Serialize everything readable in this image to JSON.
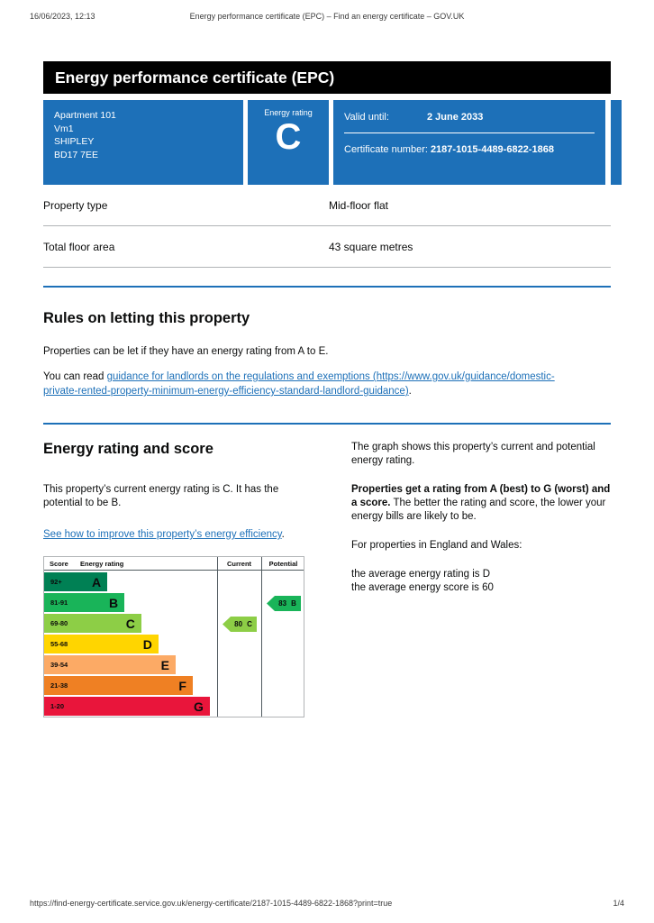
{
  "print_header": {
    "datetime": "16/06/2023, 12:13",
    "title": "Energy performance certificate (EPC) – Find an energy certificate – GOV.UK"
  },
  "banner": {
    "title": "Energy performance certificate (EPC)"
  },
  "summary": {
    "box_color": "#1d70b8",
    "address_lines": [
      "Apartment 101",
      "Vm1",
      "SHIPLEY",
      "BD17 7EE"
    ],
    "rating_label": "Energy rating",
    "rating_value": "C",
    "valid_until_label": "Valid until:",
    "valid_until_value": "2 June 2033",
    "certificate_number_label": "Certificate number:",
    "certificate_number_value": "2187-1015-4489-6822-1868"
  },
  "facts": [
    {
      "label": "Property type",
      "value": "Mid-floor flat"
    },
    {
      "label": "Total floor area",
      "value": "43 square metres"
    }
  ],
  "letting": {
    "heading": "Rules on letting this property",
    "p1": "Properties can be let if they have an energy rating from A to E.",
    "p2_prefix": "You can read ",
    "p2_link": "guidance for landlords on the regulations and exemptions (https://www.gov.uk/guidance/domestic-private-rented-property-minimum-energy-efficiency-standard-landlord-guidance)",
    "p2_suffix": "."
  },
  "rating_section": {
    "heading": "Energy rating and score",
    "p1": "This property’s current energy rating is C. It has the potential to be B.",
    "link": "See how to improve this property’s energy efficiency",
    "link_suffix": ".",
    "right_p1": "The graph shows this property’s current and potential energy rating.",
    "right_p2_bold": "Properties get a rating from A (best) to G (worst) and a score.",
    "right_p2_rest": "The better the rating and score, the lower your energy bills are likely to be.",
    "right_p3": "For properties in England and Wales:",
    "right_p4_line1": "the average energy rating is D",
    "right_p4_line2": "the average energy score is 60"
  },
  "chart_data": {
    "type": "bar",
    "orientation": "horizontal",
    "title": "Energy rating and score",
    "score_range": [
      1,
      100
    ],
    "headers": {
      "score": "Score",
      "rating": "Energy rating",
      "current": "Current",
      "potential": "Potential"
    },
    "bands": [
      {
        "score": "92+",
        "letter": "A",
        "color": "#008054",
        "width_pct": 36.5
      },
      {
        "score": "81-91",
        "letter": "B",
        "color": "#19b459",
        "width_pct": 46.4
      },
      {
        "score": "69-80",
        "letter": "C",
        "color": "#8dce46",
        "width_pct": 56.2
      },
      {
        "score": "55-68",
        "letter": "D",
        "color": "#ffd500",
        "width_pct": 66.1
      },
      {
        "score": "39-54",
        "letter": "E",
        "color": "#fcaa65",
        "width_pct": 76.0
      },
      {
        "score": "21-38",
        "letter": "F",
        "color": "#ef8023",
        "width_pct": 85.9
      },
      {
        "score": "1-20",
        "letter": "G",
        "color": "#e9153b",
        "width_pct": 95.8
      }
    ],
    "current": {
      "score": 80,
      "letter": "C",
      "band_index": 2,
      "color": "#8dce46"
    },
    "potential": {
      "score": 83,
      "letter": "B",
      "band_index": 1,
      "color": "#19b459"
    }
  },
  "page_footer": {
    "url": "https://find-energy-certificate.service.gov.uk/energy-certificate/2187-1015-4489-6822-1868?print=true",
    "page": "1/4"
  }
}
